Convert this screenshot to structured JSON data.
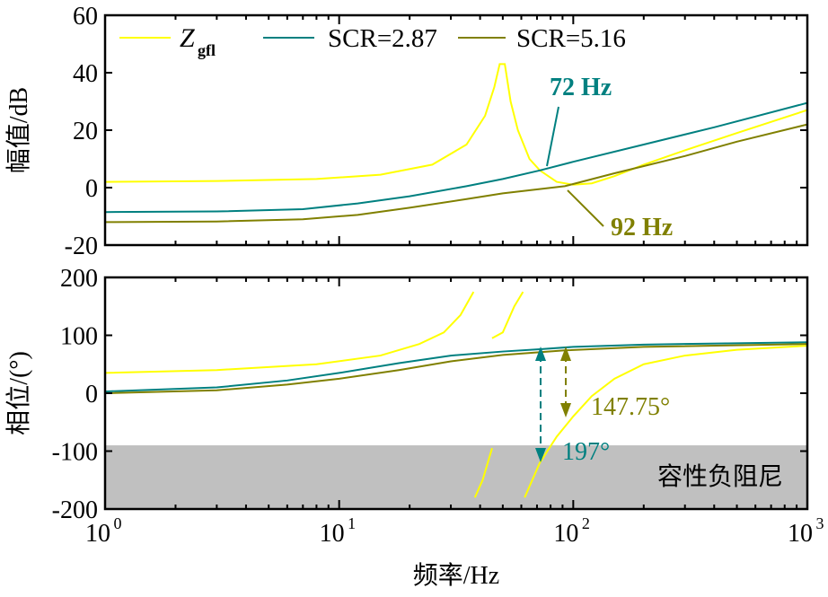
{
  "chart_data": [
    {
      "type": "line",
      "panel": "magnitude",
      "ylabel": "幅值/dB",
      "ylim": [
        -20,
        60
      ],
      "yticks": [
        -20,
        0,
        20,
        40,
        60
      ],
      "xscale": "log",
      "xlim": [
        1,
        1000
      ],
      "legend": {
        "placement": "top",
        "entries": [
          "Z",
          "gfl",
          "SCR=2.87",
          "SCR=5.16"
        ]
      },
      "series": [
        {
          "name": "Zgfl",
          "color": "#ffff00",
          "points": [
            [
              1,
              2
            ],
            [
              3,
              2.3
            ],
            [
              8,
              3
            ],
            [
              15,
              4.5
            ],
            [
              25,
              8
            ],
            [
              35,
              15
            ],
            [
              42,
              25
            ],
            [
              46,
              35
            ],
            [
              48.5,
              43
            ],
            [
              51,
              43
            ],
            [
              54,
              30
            ],
            [
              58,
              20
            ],
            [
              65,
              10
            ],
            [
              72,
              6
            ],
            [
              85,
              2
            ],
            [
              100,
              1
            ],
            [
              120,
              1.5
            ],
            [
              150,
              4
            ],
            [
              200,
              8
            ],
            [
              300,
              13
            ],
            [
              500,
              19
            ],
            [
              1000,
              27
            ]
          ]
        },
        {
          "name": "SCR=2.87",
          "color": "#008080",
          "points": [
            [
              1,
              -8.5
            ],
            [
              3,
              -8.3
            ],
            [
              7,
              -7.5
            ],
            [
              12,
              -5.5
            ],
            [
              20,
              -3
            ],
            [
              35,
              0.5
            ],
            [
              50,
              3
            ],
            [
              72,
              6
            ],
            [
              100,
              9
            ],
            [
              200,
              15
            ],
            [
              400,
              21
            ],
            [
              1000,
              29.5
            ]
          ]
        },
        {
          "name": "SCR=5.16",
          "color": "#808000",
          "points": [
            [
              1,
              -12
            ],
            [
              3,
              -11.8
            ],
            [
              7,
              -11
            ],
            [
              12,
              -9.5
            ],
            [
              20,
              -7
            ],
            [
              35,
              -4
            ],
            [
              50,
              -2
            ],
            [
              92,
              0.5
            ],
            [
              150,
              5
            ],
            [
              300,
              11
            ],
            [
              500,
              16
            ],
            [
              1000,
              22
            ]
          ]
        }
      ],
      "annotations": [
        {
          "text": "72 Hz",
          "color": "#008080"
        },
        {
          "text": "92 Hz",
          "color": "#808000"
        }
      ]
    },
    {
      "type": "line",
      "panel": "phase",
      "ylabel": "相位/(°)",
      "xlabel": "频率/Hz",
      "ylim": [
        -200,
        200
      ],
      "yticks": [
        -200,
        -100,
        0,
        100,
        200
      ],
      "xscale": "log",
      "xlim": [
        1,
        1000
      ],
      "xticks": [
        "10",
        "10",
        "10",
        "10"
      ],
      "xtick_exponents": [
        "0",
        "1",
        "2",
        "3"
      ],
      "region": {
        "label": "容性负阻尼",
        "from": -90,
        "to": -200,
        "color": "#c0c0c0"
      },
      "series": [
        {
          "name": "Zgfl",
          "color": "#ffff00",
          "segments": [
            [
              [
                1,
                35
              ],
              [
                3,
                40
              ],
              [
                8,
                50
              ],
              [
                15,
                65
              ],
              [
                22,
                85
              ],
              [
                28,
                105
              ],
              [
                33,
                135
              ],
              [
                37.5,
                175
              ]
            ],
            [
              [
                38,
                -180
              ],
              [
                41,
                -150
              ],
              [
                45,
                -95
              ]
            ],
            [
              [
                45,
                95
              ],
              [
                50,
                105
              ],
              [
                56,
                150
              ],
              [
                61,
                175
              ]
            ],
            [
              [
                62,
                -180
              ],
              [
                72,
                -120
              ],
              [
                85,
                -75
              ],
              [
                100,
                -40
              ],
              [
                120,
                -5
              ],
              [
                150,
                25
              ],
              [
                200,
                50
              ],
              [
                300,
                65
              ],
              [
                500,
                75
              ],
              [
                1000,
                82
              ]
            ]
          ]
        },
        {
          "name": "SCR=2.87",
          "color": "#008080",
          "points": [
            [
              1,
              3
            ],
            [
              3,
              10
            ],
            [
              6,
              22
            ],
            [
              10,
              35
            ],
            [
              18,
              52
            ],
            [
              30,
              65
            ],
            [
              50,
              72
            ],
            [
              72,
              76
            ],
            [
              100,
              80
            ],
            [
              200,
              84
            ],
            [
              1000,
              88
            ]
          ]
        },
        {
          "name": "SCR=5.16",
          "color": "#808000",
          "points": [
            [
              1,
              0
            ],
            [
              3,
              5
            ],
            [
              6,
              15
            ],
            [
              10,
              25
            ],
            [
              18,
              40
            ],
            [
              30,
              55
            ],
            [
              50,
              66
            ],
            [
              92,
              74
            ],
            [
              200,
              80
            ],
            [
              1000,
              85
            ]
          ]
        }
      ],
      "annotations": [
        {
          "text": "147.75°",
          "color": "#808000"
        },
        {
          "text": "197°",
          "color": "#008080"
        }
      ]
    }
  ]
}
